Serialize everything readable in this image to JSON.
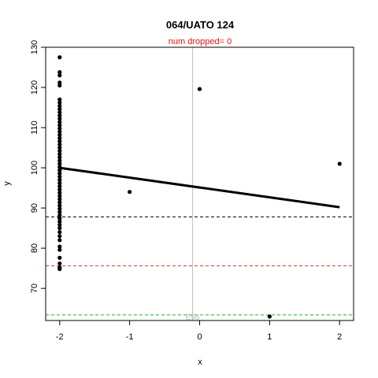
{
  "chart_data": {
    "type": "scatter",
    "title": "064/UATO 124",
    "subtitle": "num dropped= 0",
    "xlabel": "x",
    "ylabel": "y",
    "xlim": [
      -2.2,
      2.2
    ],
    "ylim": [
      62,
      130
    ],
    "xticks": [
      -2,
      -1,
      0,
      1,
      2
    ],
    "yticks": [
      70,
      80,
      90,
      100,
      110,
      120,
      130
    ],
    "grid": false,
    "points": [
      {
        "x": -2,
        "y": 127.5
      },
      {
        "x": -2,
        "y": 123.8
      },
      {
        "x": -2,
        "y": 123.0
      },
      {
        "x": -2,
        "y": 121.2
      },
      {
        "x": -2,
        "y": 120.5
      },
      {
        "x": -2,
        "y": 117.0
      },
      {
        "x": -2,
        "y": 116.2
      },
      {
        "x": -2,
        "y": 115.4
      },
      {
        "x": -2,
        "y": 114.6
      },
      {
        "x": -2,
        "y": 113.8
      },
      {
        "x": -2,
        "y": 113.0
      },
      {
        "x": -2,
        "y": 112.2
      },
      {
        "x": -2,
        "y": 111.4
      },
      {
        "x": -2,
        "y": 110.6
      },
      {
        "x": -2,
        "y": 109.8
      },
      {
        "x": -2,
        "y": 109.0
      },
      {
        "x": -2,
        "y": 108.2
      },
      {
        "x": -2,
        "y": 107.4
      },
      {
        "x": -2,
        "y": 106.6
      },
      {
        "x": -2,
        "y": 105.8
      },
      {
        "x": -2,
        "y": 105.0
      },
      {
        "x": -2,
        "y": 104.2
      },
      {
        "x": -2,
        "y": 103.4
      },
      {
        "x": -2,
        "y": 102.6
      },
      {
        "x": -2,
        "y": 101.8
      },
      {
        "x": -2,
        "y": 101.0
      },
      {
        "x": -2,
        "y": 100.2
      },
      {
        "x": -2,
        "y": 99.4
      },
      {
        "x": -2,
        "y": 98.6
      },
      {
        "x": -2,
        "y": 97.8
      },
      {
        "x": -2,
        "y": 97.0
      },
      {
        "x": -2,
        "y": 96.2
      },
      {
        "x": -2,
        "y": 95.4
      },
      {
        "x": -2,
        "y": 94.6
      },
      {
        "x": -2,
        "y": 93.8
      },
      {
        "x": -2,
        "y": 93.0
      },
      {
        "x": -2,
        "y": 92.2
      },
      {
        "x": -2,
        "y": 91.4
      },
      {
        "x": -2,
        "y": 90.6
      },
      {
        "x": -2,
        "y": 89.8
      },
      {
        "x": -2,
        "y": 89.0
      },
      {
        "x": -2,
        "y": 88.2
      },
      {
        "x": -2,
        "y": 87.4
      },
      {
        "x": -2,
        "y": 86.6
      },
      {
        "x": -2,
        "y": 85.8
      },
      {
        "x": -2,
        "y": 85.0
      },
      {
        "x": -2,
        "y": 84.0
      },
      {
        "x": -2,
        "y": 83.0
      },
      {
        "x": -2,
        "y": 82.0
      },
      {
        "x": -2,
        "y": 80.4
      },
      {
        "x": -2,
        "y": 79.6
      },
      {
        "x": -2,
        "y": 77.6
      },
      {
        "x": -2,
        "y": 76.2
      },
      {
        "x": -2,
        "y": 75.2
      },
      {
        "x": -2,
        "y": 74.8
      },
      {
        "x": -1,
        "y": 94.0
      },
      {
        "x": 0,
        "y": 119.6
      },
      {
        "x": 1,
        "y": 63.0
      },
      {
        "x": 2,
        "y": 101.0
      }
    ],
    "fit_line": {
      "x": [
        -2,
        2
      ],
      "y": [
        100.0,
        90.2
      ],
      "color": "#000000"
    },
    "hlines": [
      {
        "y": 87.8,
        "color": "#000000",
        "style": "dashed"
      },
      {
        "y": 75.6,
        "color": "#d9382a",
        "style": "dashed"
      },
      {
        "y": 63.4,
        "color": "#1db31d",
        "style": "dashed"
      }
    ],
    "vline": {
      "x": -0.1,
      "color": "#bdbdbd"
    },
    "annotation": {
      "text": "E56",
      "x": -0.1,
      "y": 63.0
    }
  }
}
